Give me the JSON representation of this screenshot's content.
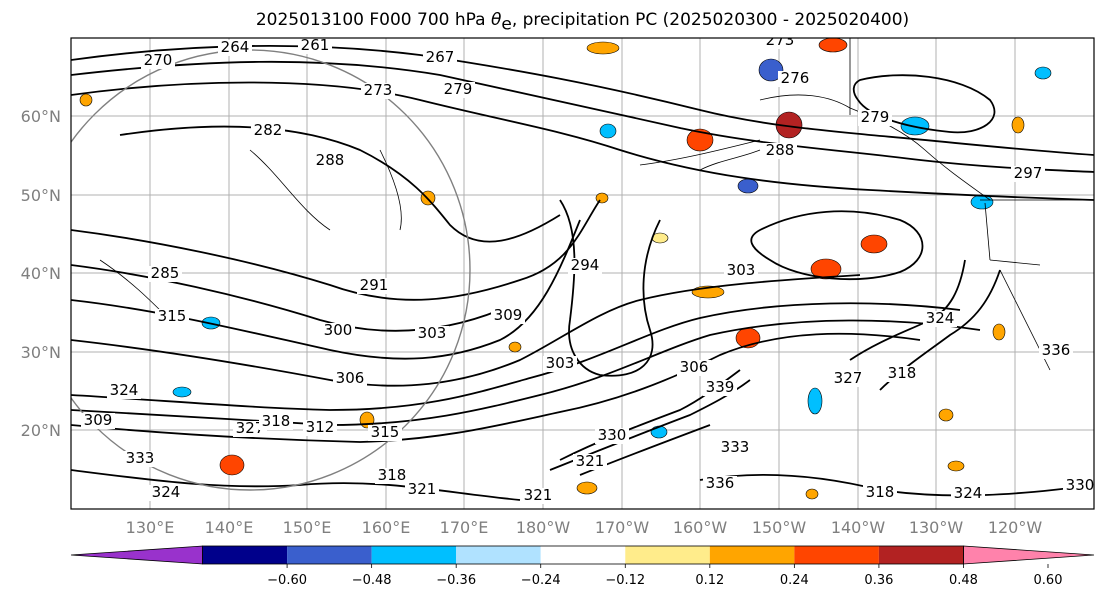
{
  "title": {
    "prefix": "2025013100 F000 700 hPa ",
    "symbol": "θ",
    "symbol_sub": "e",
    "suffix": ", precipitation PC (2025020300 - 2025020400)"
  },
  "map": {
    "lat_labels": [
      "60°N",
      "50°N",
      "40°N",
      "30°N",
      "20°N"
    ],
    "lon_labels": [
      "130°E",
      "140°E",
      "150°E",
      "160°E",
      "170°E",
      "180°W",
      "170°W",
      "160°W",
      "150°W",
      "140°W",
      "130°W",
      "120°W"
    ],
    "contour_labels": [
      "264",
      "261",
      "270",
      "267",
      "273",
      "273",
      "279",
      "276",
      "282",
      "288",
      "288",
      "279",
      "297",
      "285",
      "291",
      "294",
      "300",
      "303",
      "303",
      "309",
      "303",
      "306",
      "312",
      "315",
      "318",
      "321",
      "321",
      "318",
      "318",
      "321",
      "324",
      "324",
      "327",
      "330",
      "333",
      "336",
      "339",
      "336",
      "333",
      "324",
      "306",
      "309",
      "330",
      "327",
      "315",
      "318",
      "324"
    ],
    "grid": true
  },
  "colorbar": {
    "ticks": [
      "−0.60",
      "−0.48",
      "−0.36",
      "−0.24",
      "−0.12",
      "0.12",
      "0.24",
      "0.36",
      "0.48",
      "0.60"
    ],
    "colors": [
      "#9932cc",
      "#00008b",
      "#3a5fcd",
      "#00bfff",
      "#b0e2ff",
      "#ffffff",
      "#ffec8b",
      "#ffa500",
      "#ff4500",
      "#b22222",
      "#ff82ab"
    ]
  }
}
